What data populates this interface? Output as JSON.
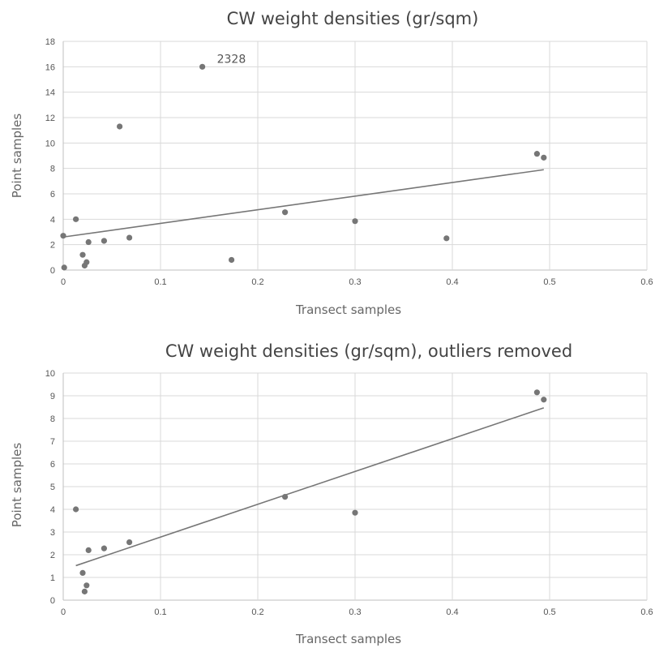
{
  "chart_data": [
    {
      "type": "scatter",
      "title": "CW weight densities (gr/sqm)",
      "xlabel": "Transect samples",
      "ylabel": "Point samples",
      "xlim": [
        0,
        0.6
      ],
      "ylim": [
        0,
        18
      ],
      "xticks": [
        0,
        0.1,
        0.2,
        0.3,
        0.4,
        0.5,
        0.6
      ],
      "yticks": [
        0,
        2,
        4,
        6,
        8,
        10,
        12,
        14,
        16,
        18
      ],
      "grid": true,
      "points": [
        {
          "x": 0.0,
          "y": 2.7
        },
        {
          "x": 0.001,
          "y": 0.2
        },
        {
          "x": 0.013,
          "y": 4.0
        },
        {
          "x": 0.02,
          "y": 1.2
        },
        {
          "x": 0.022,
          "y": 0.35
        },
        {
          "x": 0.024,
          "y": 0.62
        },
        {
          "x": 0.026,
          "y": 2.2
        },
        {
          "x": 0.042,
          "y": 2.3
        },
        {
          "x": 0.058,
          "y": 11.3
        },
        {
          "x": 0.068,
          "y": 2.55
        },
        {
          "x": 0.143,
          "y": 16.0,
          "label": "2328"
        },
        {
          "x": 0.173,
          "y": 0.8
        },
        {
          "x": 0.228,
          "y": 4.55
        },
        {
          "x": 0.3,
          "y": 3.85
        },
        {
          "x": 0.394,
          "y": 2.5
        },
        {
          "x": 0.487,
          "y": 9.15
        },
        {
          "x": 0.494,
          "y": 8.85
        }
      ],
      "trendline": {
        "x": [
          0,
          0.494
        ],
        "y": [
          2.6,
          7.9
        ]
      }
    },
    {
      "type": "scatter",
      "title": "CW weight densities (gr/sqm), outliers removed",
      "xlabel": "Transect samples",
      "ylabel": "Point samples",
      "xlim": [
        0,
        0.6
      ],
      "ylim": [
        0,
        10
      ],
      "xticks": [
        0,
        0.1,
        0.2,
        0.3,
        0.4,
        0.5,
        0.6
      ],
      "yticks": [
        0,
        1,
        2,
        3,
        4,
        5,
        6,
        7,
        8,
        9,
        10
      ],
      "grid": true,
      "points": [
        {
          "x": 0.013,
          "y": 4.0
        },
        {
          "x": 0.02,
          "y": 1.2
        },
        {
          "x": 0.022,
          "y": 0.38
        },
        {
          "x": 0.024,
          "y": 0.65
        },
        {
          "x": 0.026,
          "y": 2.2
        },
        {
          "x": 0.042,
          "y": 2.28
        },
        {
          "x": 0.068,
          "y": 2.55
        },
        {
          "x": 0.228,
          "y": 4.55
        },
        {
          "x": 0.3,
          "y": 3.85
        },
        {
          "x": 0.487,
          "y": 9.15
        },
        {
          "x": 0.494,
          "y": 8.83
        }
      ],
      "trendline": {
        "x": [
          0.013,
          0.494
        ],
        "y": [
          1.52,
          8.47
        ]
      }
    }
  ]
}
